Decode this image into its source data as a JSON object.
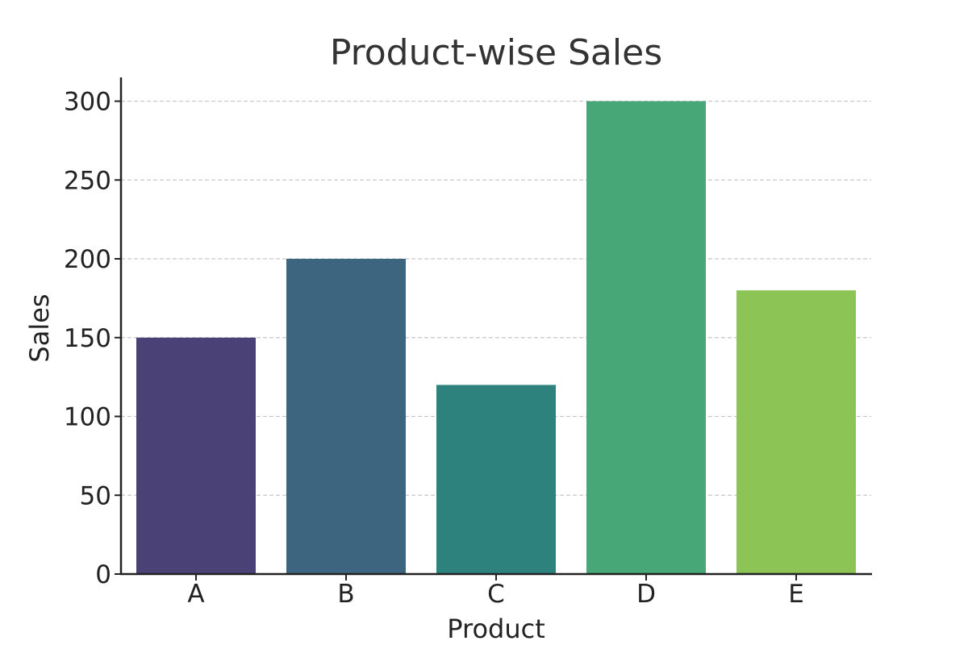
{
  "chart_data": {
    "type": "bar",
    "title": "Product-wise Sales",
    "xlabel": "Product",
    "ylabel": "Sales",
    "categories": [
      "A",
      "B",
      "C",
      "D",
      "E"
    ],
    "values": [
      150,
      200,
      120,
      300,
      180
    ],
    "colors": [
      "#4a4177",
      "#3e6580",
      "#2e827d",
      "#47a777",
      "#8dc456"
    ],
    "ylim": [
      0,
      315
    ],
    "yticks": [
      0,
      50,
      100,
      150,
      200,
      250,
      300
    ],
    "grid": "y-dashed",
    "legend": "none"
  }
}
